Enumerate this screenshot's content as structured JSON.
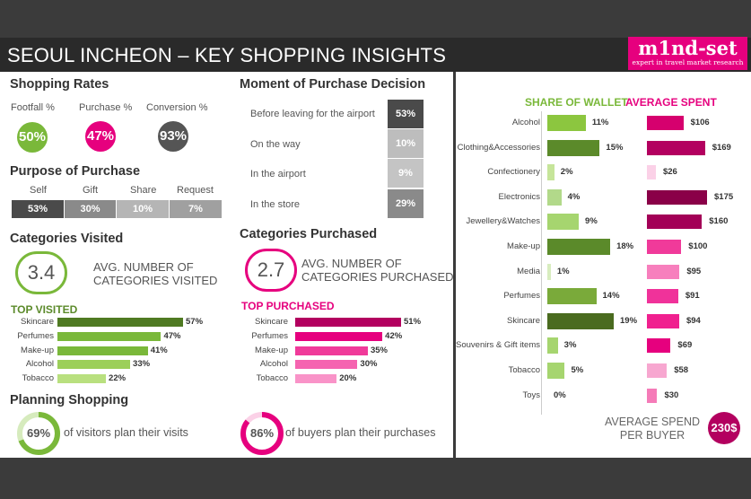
{
  "title": "SEOUL INCHEON – KEY SHOPPING INSIGHTS",
  "logo": {
    "name": "m1nd-set",
    "tagline": "expert in travel market research"
  },
  "shopping_rates": {
    "heading": "Shopping Rates",
    "items": [
      {
        "label": "Footfall %",
        "value": "50%",
        "color": "#7ab83a"
      },
      {
        "label": "Purchase %",
        "value": "47%",
        "color": "#e6007e"
      },
      {
        "label": "Conversion %",
        "value": "93%",
        "color": "#555555"
      }
    ]
  },
  "purpose_of_purchase": {
    "heading": "Purpose of Purchase",
    "items": [
      {
        "label": "Self",
        "value": "53%",
        "color": "#4a4a4a"
      },
      {
        "label": "Gift",
        "value": "30%",
        "color": "#8a8a8a"
      },
      {
        "label": "Share",
        "value": "10%",
        "color": "#b5b5b5"
      },
      {
        "label": "Request",
        "value": "7%",
        "color": "#a0a0a0"
      }
    ]
  },
  "moment_of_purchase": {
    "heading": "Moment of Purchase Decision",
    "items": [
      {
        "label": "Before leaving for the airport",
        "value": "53%",
        "color": "#4a4a4a"
      },
      {
        "label": "On the way",
        "value": "10%",
        "color": "#bdbdbd"
      },
      {
        "label": "In the airport",
        "value": "9%",
        "color": "#c4c4c4"
      },
      {
        "label": "In the store",
        "value": "29%",
        "color": "#8a8a8a"
      }
    ]
  },
  "categories_visited": {
    "heading": "Categories Visited",
    "avg_value": "3.4",
    "avg_text_1": "AVG. NUMBER OF",
    "avg_text_2": "CATEGORIES VISITED",
    "top_label": "TOP VISITED"
  },
  "categories_purchased": {
    "heading": "Categories Purchased",
    "avg_value": "2.7",
    "avg_text_1": "AVG. NUMBER OF",
    "avg_text_2": "CATEGORIES PURCHASED",
    "top_label": "TOP PURCHASED"
  },
  "planning": {
    "heading": "Planning Shopping",
    "visitors_value": "69%",
    "visitors_fraction": 0.69,
    "visitors_text": "of visitors plan their visits",
    "buyers_value": "86%",
    "buyers_fraction": 0.86,
    "buyers_text": "of buyers plan their purchases"
  },
  "share_of_wallet_heading": "SHARE OF WALLET",
  "average_spent_heading": "AVERAGE SPENT",
  "average_spend_per_buyer": {
    "label_1": "AVERAGE SPEND",
    "label_2": "PER BUYER",
    "value": "230$"
  },
  "chart_data": [
    {
      "type": "bar",
      "title": "TOP VISITED",
      "categories": [
        "Skincare",
        "Perfumes",
        "Make-up",
        "Alcohol",
        "Tobacco"
      ],
      "values": [
        57,
        47,
        41,
        33,
        22
      ],
      "value_labels": [
        "57%",
        "47%",
        "41%",
        "33%",
        "22%"
      ],
      "colors": [
        "#4f7a22",
        "#7ab83a",
        "#7ab83a",
        "#9ccf5a",
        "#b9e07f"
      ],
      "xlim": [
        0,
        57
      ]
    },
    {
      "type": "bar",
      "title": "TOP PURCHASED",
      "categories": [
        "Skincare",
        "Perfumes",
        "Make-up",
        "Alcohol",
        "Tobacco"
      ],
      "values": [
        51,
        42,
        35,
        30,
        20
      ],
      "value_labels": [
        "51%",
        "42%",
        "35%",
        "30%",
        "20%"
      ],
      "colors": [
        "#b3005f",
        "#e6007e",
        "#f03a9a",
        "#f564b0",
        "#f993c8"
      ],
      "xlim": [
        0,
        51
      ]
    },
    {
      "type": "bar",
      "title": "SHARE OF WALLET",
      "categories": [
        "Alcohol",
        "Clothing&Accessories",
        "Confectionery",
        "Electronics",
        "Jewellery&Watches",
        "Make-up",
        "Media",
        "Perfumes",
        "Skincare",
        "Souvenirs & Gift items",
        "Tobacco",
        "Toys"
      ],
      "values": [
        11,
        15,
        2,
        4,
        9,
        18,
        1,
        14,
        19,
        3,
        5,
        0
      ],
      "value_labels": [
        "11%",
        "15%",
        "2%",
        "4%",
        "9%",
        "18%",
        "1%",
        "14%",
        "19%",
        "3%",
        "5%",
        "0%"
      ],
      "colors": [
        "#8cc63f",
        "#5b8a2a",
        "#c6e59a",
        "#b2d98a",
        "#a6d56f",
        "#5b8a2a",
        "#d8edbf",
        "#7aaa3a",
        "#4a6b1f",
        "#a6d56f",
        "#a6d56f",
        "#d8edbf"
      ],
      "xlim": [
        0,
        19
      ]
    },
    {
      "type": "bar",
      "title": "AVERAGE SPENT",
      "categories": [
        "Alcohol",
        "Clothing&Accessories",
        "Confectionery",
        "Electronics",
        "Jewellery&Watches",
        "Make-up",
        "Media",
        "Perfumes",
        "Skincare",
        "Souvenirs & Gift items",
        "Tobacco",
        "Toys"
      ],
      "values": [
        106,
        169,
        26,
        175,
        160,
        100,
        95,
        91,
        94,
        69,
        58,
        30
      ],
      "value_labels": [
        "$106",
        "$169",
        "$26",
        "$175",
        "$160",
        "$100",
        "$95",
        "$91",
        "$94",
        "$69",
        "$58",
        "$30"
      ],
      "colors": [
        "#d6006e",
        "#b3005f",
        "#fbd1e7",
        "#8a0048",
        "#a30057",
        "#f03a9a",
        "#f77fbd",
        "#f0329a",
        "#f0208f",
        "#e6007e",
        "#f7a7d0",
        "#f57bb8"
      ],
      "xlim": [
        0,
        175
      ]
    }
  ]
}
